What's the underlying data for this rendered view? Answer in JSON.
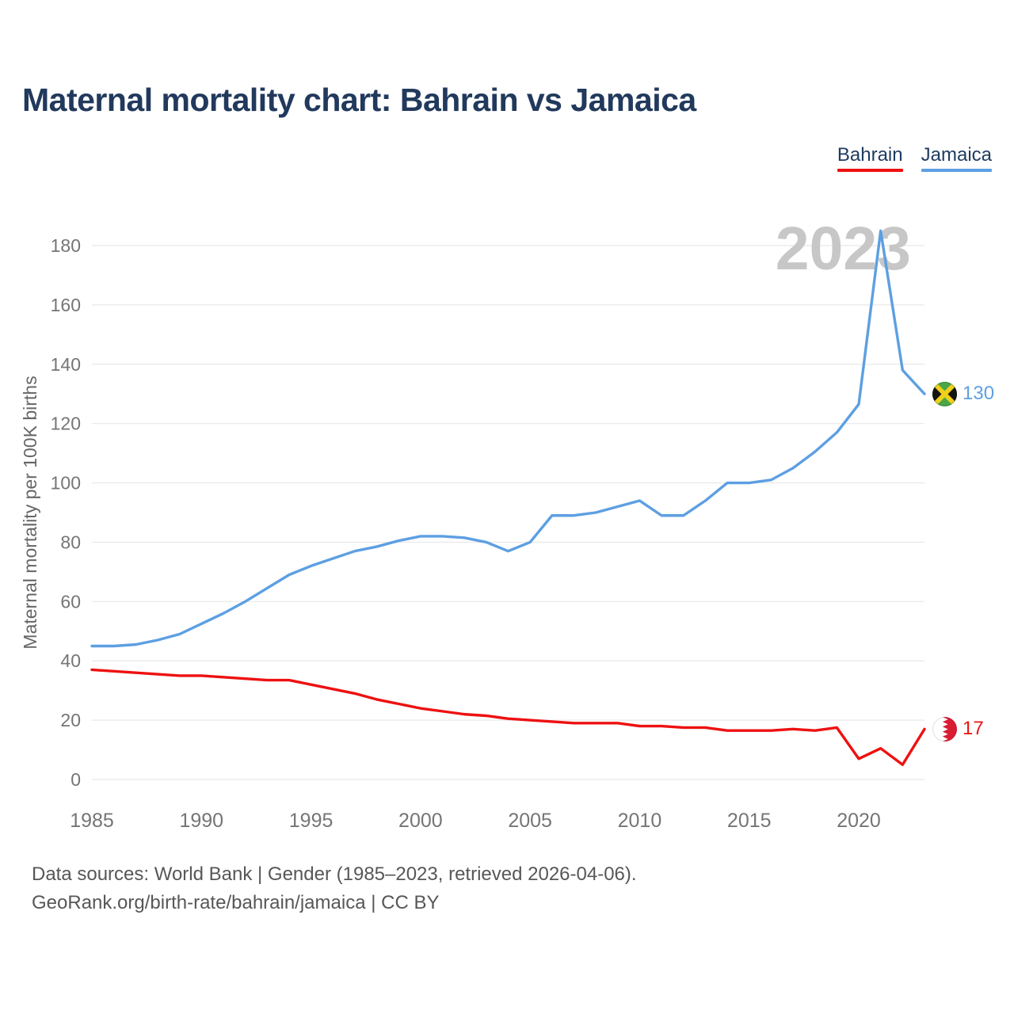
{
  "title": "Maternal mortality chart: Bahrain vs Jamaica",
  "watermark": "2023",
  "legend": {
    "items": [
      {
        "label": "Bahrain",
        "color": "#ee1111"
      },
      {
        "label": "Jamaica",
        "color": "#5d9fe2"
      }
    ]
  },
  "footer": {
    "line1": "Data sources: World Bank | Gender (1985–2023, retrieved 2026-04-06).",
    "line2": "GeoRank.org/birth-rate/bahrain/jamaica | CC BY"
  },
  "chart_data": {
    "type": "line",
    "title": "Maternal mortality chart: Bahrain vs Jamaica",
    "xlabel": "",
    "ylabel": "Maternal mortality per 100K births",
    "grid": "horizontal",
    "ylim": [
      0,
      190
    ],
    "x_ticks": [
      1985,
      1990,
      1995,
      2000,
      2005,
      2010,
      2015,
      2020
    ],
    "y_ticks": [
      0,
      20,
      40,
      60,
      80,
      100,
      120,
      140,
      160,
      180
    ],
    "x": [
      1985,
      1986,
      1987,
      1988,
      1989,
      1990,
      1991,
      1992,
      1993,
      1994,
      1995,
      1996,
      1997,
      1998,
      1999,
      2000,
      2001,
      2002,
      2003,
      2004,
      2005,
      2006,
      2007,
      2008,
      2009,
      2010,
      2011,
      2012,
      2013,
      2014,
      2015,
      2016,
      2017,
      2018,
      2019,
      2020,
      2021,
      2022,
      2023
    ],
    "series": [
      {
        "name": "Bahrain",
        "color": "#ee1111",
        "values": [
          37,
          36.5,
          36,
          35.5,
          35,
          35,
          34.5,
          34,
          33.5,
          33.5,
          32,
          30.5,
          29,
          27,
          25.5,
          24,
          23,
          22,
          21.5,
          20.5,
          20,
          19.5,
          19,
          19,
          19,
          18,
          18,
          17.5,
          17.5,
          16.5,
          16.5,
          16.5,
          17,
          16.5,
          17.5,
          7,
          10.5,
          5,
          17
        ]
      },
      {
        "name": "Jamaica",
        "color": "#5d9fe2",
        "values": [
          45,
          45,
          45.5,
          47,
          49,
          52.5,
          56,
          60,
          64.5,
          69,
          72,
          74.5,
          77,
          78.5,
          80.5,
          82,
          82,
          81.5,
          80,
          77,
          80,
          89,
          89,
          90,
          92,
          94,
          89,
          89,
          94,
          100,
          100,
          101,
          105,
          110.5,
          117,
          126.5,
          185,
          138,
          130
        ]
      }
    ],
    "end_labels": [
      {
        "series": "Jamaica",
        "value": 130,
        "icon": "jamaica-flag-icon"
      },
      {
        "series": "Bahrain",
        "value": 17,
        "icon": "bahrain-flag-icon"
      }
    ]
  }
}
